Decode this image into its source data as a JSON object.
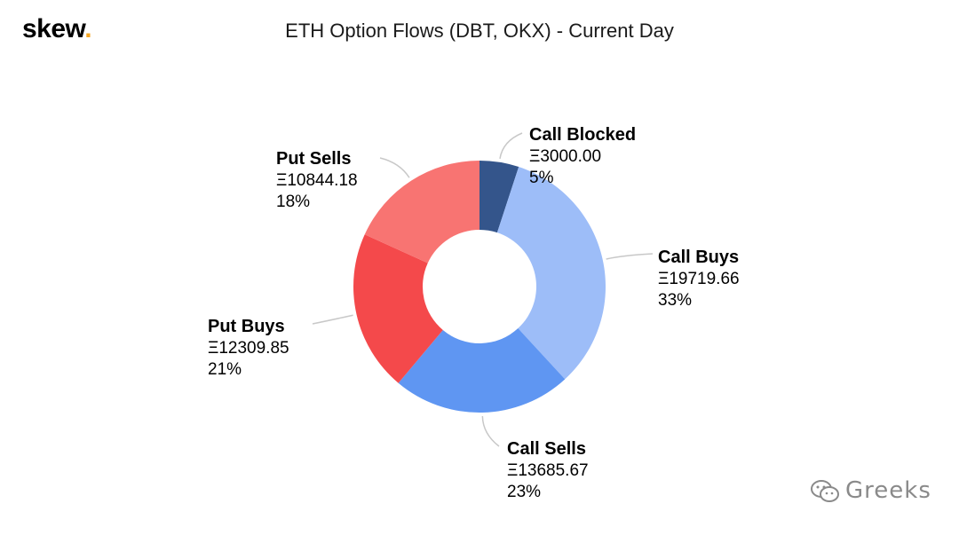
{
  "header": {
    "brand": "skew",
    "brand_dot": ".",
    "title": "ETH Option Flows (DBT, OKX) - Current Day"
  },
  "watermark": {
    "text": "Greeks",
    "icon": "wechat-icon"
  },
  "chart_data": {
    "type": "pie",
    "variant": "donut",
    "title": "ETH Option Flows (DBT, OKX) - Current Day",
    "currency_symbol": "Ξ",
    "slices": [
      {
        "name": "Call Blocked",
        "value": 3000.0,
        "value_label": "Ξ3000.00",
        "pct_label": "5%",
        "color": "#34558b"
      },
      {
        "name": "Call Buys",
        "value": 19719.66,
        "value_label": "Ξ19719.66",
        "pct_label": "33%",
        "color": "#9dbdf8"
      },
      {
        "name": "Call Sells",
        "value": 13685.67,
        "value_label": "Ξ13685.67",
        "pct_label": "23%",
        "color": "#5f96f2"
      },
      {
        "name": "Put Buys",
        "value": 12309.85,
        "value_label": "Ξ12309.85",
        "pct_label": "21%",
        "color": "#f4494b"
      },
      {
        "name": "Put Sells",
        "value": 10844.18,
        "value_label": "Ξ10844.18",
        "pct_label": "18%",
        "color": "#f87472"
      }
    ],
    "legend": "none",
    "labels": "outside-with-leader-lines"
  }
}
